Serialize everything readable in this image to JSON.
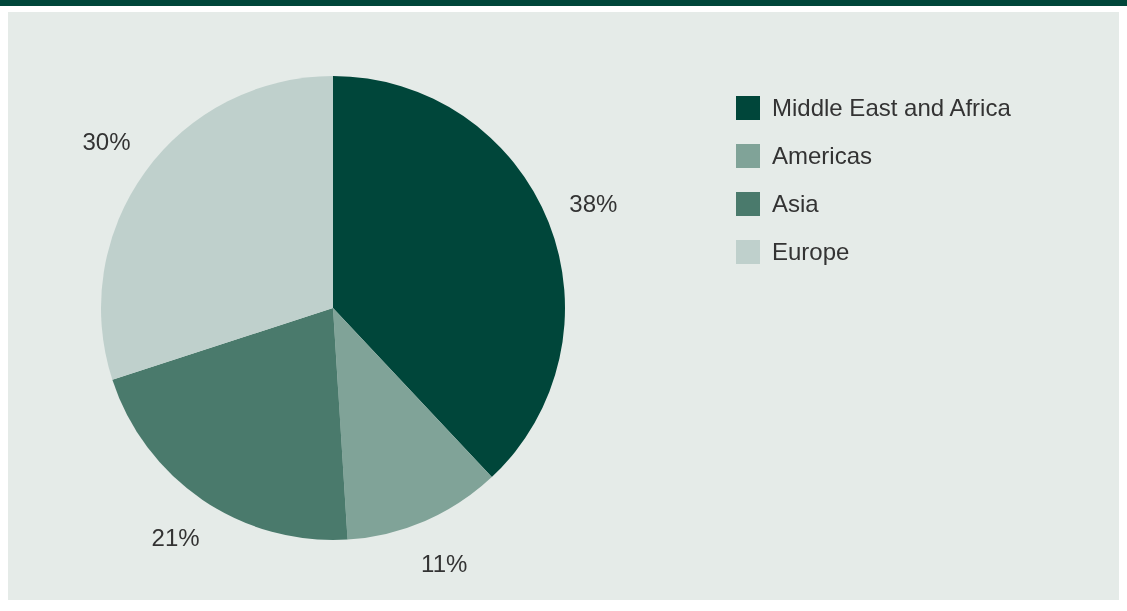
{
  "chart_data": {
    "type": "pie",
    "categories": [
      "Middle East and Africa",
      "Americas",
      "Asia",
      "Europe"
    ],
    "values": [
      38,
      11,
      21,
      30
    ],
    "colors": [
      "#00463a",
      "#80a398",
      "#4a7a6c",
      "#bfd0cc"
    ],
    "value_labels": [
      "38%",
      "11%",
      "21%",
      "30%"
    ],
    "legend": "top right"
  }
}
